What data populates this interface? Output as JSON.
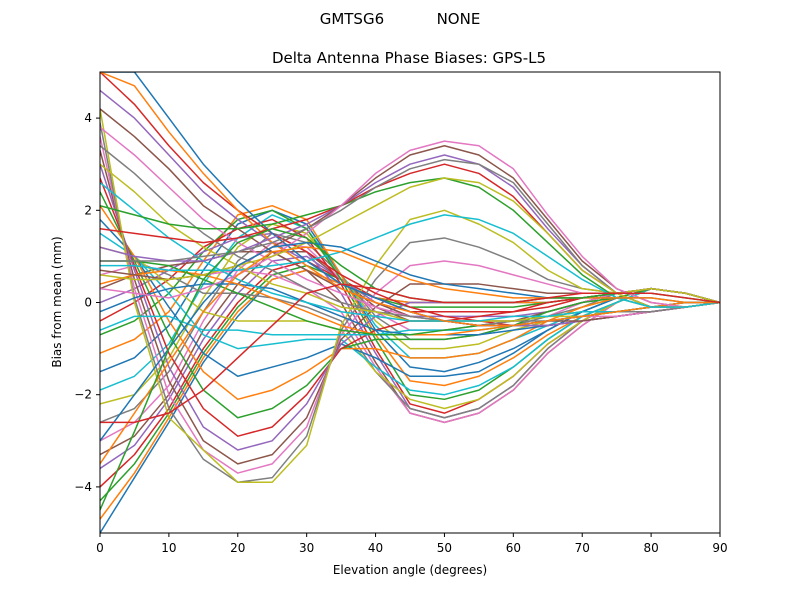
{
  "chart_data": {
    "type": "line",
    "suptitle": "GMTSG6           NONE",
    "title": "Delta Antenna Phase Biases: GPS-L5",
    "xlabel": "Elevation angle (degrees)",
    "ylabel": "Bias from mean (mm)",
    "xlim": [
      0,
      90
    ],
    "ylim": [
      -5,
      5
    ],
    "xticks": [
      "0",
      "10",
      "20",
      "30",
      "40",
      "50",
      "60",
      "70",
      "80",
      "90"
    ],
    "yticks": [
      "−4",
      "−2",
      "0",
      "2",
      "4"
    ],
    "x": [
      0,
      5,
      10,
      15,
      20,
      25,
      30,
      35,
      40,
      45,
      50,
      55,
      60,
      65,
      70,
      75,
      80,
      85,
      90
    ],
    "grid": false,
    "legend": "none",
    "series_colors": [
      "#1f77b4",
      "#ff7f0e",
      "#2ca02c",
      "#d62728",
      "#9467bd",
      "#8c564b",
      "#e377c2",
      "#7f7f7f",
      "#bcbd22",
      "#17becf"
    ],
    "series": [
      {
        "values": [
          -5.0,
          -3.8,
          -2.6,
          -1.3,
          -0.3,
          0.5,
          0.7,
          0.4,
          0.1,
          0.0,
          0.0,
          0.0,
          0.0,
          0.0,
          0.1,
          0.2,
          0.3,
          0.2,
          0.0
        ]
      },
      {
        "values": [
          -4.7,
          -3.7,
          -2.5,
          -1.2,
          -0.2,
          0.5,
          0.7,
          0.4,
          0.1,
          0.0,
          0.0,
          0.0,
          0.0,
          0.0,
          0.1,
          0.2,
          0.3,
          0.2,
          0.0
        ]
      },
      {
        "values": [
          -4.3,
          -3.5,
          -2.4,
          -1.1,
          -0.1,
          0.6,
          0.8,
          0.5,
          0.1,
          -0.1,
          -0.1,
          -0.1,
          -0.1,
          0.0,
          0.1,
          0.2,
          0.3,
          0.2,
          0.0
        ]
      },
      {
        "values": [
          -4.0,
          -3.3,
          -2.3,
          -1.0,
          0.0,
          0.7,
          0.9,
          0.5,
          0.1,
          -0.2,
          -0.2,
          -0.2,
          -0.2,
          -0.1,
          0.1,
          0.2,
          0.3,
          0.2,
          0.0
        ]
      },
      {
        "values": [
          -3.6,
          -3.1,
          -2.1,
          -0.8,
          0.2,
          0.9,
          1.0,
          0.5,
          0.0,
          -0.3,
          -0.3,
          -0.3,
          -0.3,
          -0.2,
          0.0,
          0.2,
          0.3,
          0.2,
          0.0
        ]
      },
      {
        "values": [
          -3.3,
          -2.9,
          -2.0,
          -0.6,
          0.4,
          1.1,
          1.1,
          0.5,
          -0.1,
          -0.4,
          -0.4,
          -0.4,
          -0.4,
          -0.2,
          0.0,
          0.2,
          0.3,
          0.2,
          0.0
        ]
      },
      {
        "values": [
          -3.0,
          -2.6,
          -1.8,
          -0.4,
          0.7,
          1.3,
          1.2,
          0.5,
          -0.2,
          -0.6,
          -0.6,
          -0.5,
          -0.4,
          -0.3,
          0.0,
          0.2,
          0.3,
          0.2,
          0.0
        ]
      },
      {
        "values": [
          -2.6,
          -2.3,
          -1.5,
          -0.2,
          0.9,
          1.5,
          1.3,
          0.6,
          -0.3,
          -0.8,
          -0.8,
          -0.7,
          -0.5,
          -0.3,
          -0.1,
          0.2,
          0.3,
          0.2,
          0.0
        ]
      },
      {
        "values": [
          -2.2,
          -2.0,
          -1.2,
          0.1,
          1.2,
          1.7,
          1.5,
          0.6,
          -0.4,
          -1.0,
          -1.0,
          -0.9,
          -0.6,
          -0.4,
          -0.1,
          0.1,
          0.3,
          0.2,
          0.0
        ]
      },
      {
        "values": [
          -1.9,
          -1.6,
          -0.9,
          0.4,
          1.4,
          1.9,
          1.6,
          0.6,
          -0.5,
          -1.2,
          -1.2,
          -1.1,
          -0.8,
          -0.5,
          -0.2,
          0.1,
          0.3,
          0.2,
          0.0
        ]
      },
      {
        "values": [
          -1.5,
          -1.2,
          -0.5,
          0.7,
          1.7,
          2.0,
          1.7,
          0.6,
          -0.6,
          -1.4,
          -1.5,
          -1.3,
          -1.0,
          -0.6,
          -0.2,
          0.1,
          0.3,
          0.2,
          0.0
        ]
      },
      {
        "values": [
          -1.1,
          -0.8,
          -0.2,
          0.9,
          1.9,
          2.1,
          1.8,
          0.6,
          -0.7,
          -1.7,
          -1.8,
          -1.6,
          -1.2,
          -0.7,
          -0.3,
          0.0,
          0.3,
          0.2,
          0.0
        ]
      },
      {
        "values": [
          -0.7,
          -0.4,
          0.2,
          1.1,
          1.8,
          2.0,
          1.6,
          0.5,
          -0.8,
          -2.0,
          -2.1,
          -1.9,
          -1.4,
          -0.8,
          -0.3,
          0.0,
          0.3,
          0.2,
          0.0
        ]
      },
      {
        "values": [
          -0.4,
          0.0,
          0.5,
          1.2,
          1.6,
          1.8,
          1.4,
          0.4,
          -1.0,
          -2.2,
          -2.4,
          -2.1,
          -1.6,
          -0.9,
          -0.4,
          0.0,
          0.3,
          0.2,
          0.0
        ]
      },
      {
        "values": [
          0.0,
          0.3,
          0.7,
          1.1,
          1.4,
          1.5,
          1.1,
          0.2,
          -1.1,
          -2.3,
          -2.5,
          -2.3,
          -1.8,
          -1.0,
          -0.4,
          0.0,
          0.3,
          0.2,
          0.0
        ]
      },
      {
        "values": [
          0.3,
          0.6,
          0.8,
          0.9,
          1.1,
          1.1,
          0.7,
          0.0,
          -1.3,
          -2.4,
          -2.6,
          -2.4,
          -1.9,
          -1.1,
          -0.5,
          0.0,
          0.3,
          0.2,
          0.0
        ]
      },
      {
        "values": [
          0.6,
          0.8,
          0.7,
          0.6,
          0.7,
          0.6,
          0.3,
          -0.2,
          -1.4,
          -2.4,
          -2.6,
          -2.4,
          -1.9,
          -1.1,
          -0.5,
          0.0,
          0.3,
          0.2,
          0.0
        ]
      },
      {
        "values": [
          0.9,
          0.9,
          0.6,
          0.2,
          0.2,
          0.1,
          -0.1,
          -0.4,
          -1.5,
          -2.3,
          -2.5,
          -2.3,
          -1.8,
          -1.0,
          -0.4,
          0.0,
          0.3,
          0.2,
          0.0
        ]
      },
      {
        "values": [
          1.2,
          1.0,
          0.4,
          -0.2,
          -0.4,
          -0.4,
          -0.4,
          -0.6,
          -1.5,
          -2.1,
          -2.3,
          -2.1,
          -1.6,
          -0.9,
          -0.4,
          0.0,
          0.3,
          0.2,
          0.0
        ]
      },
      {
        "values": [
          1.5,
          1.0,
          0.2,
          -0.7,
          -1.0,
          -0.9,
          -0.8,
          -0.8,
          -1.4,
          -1.9,
          -2.0,
          -1.8,
          -1.4,
          -0.8,
          -0.3,
          0.0,
          0.3,
          0.2,
          0.0
        ]
      },
      {
        "values": [
          1.8,
          1.0,
          -0.1,
          -1.1,
          -1.6,
          -1.4,
          -1.2,
          -0.9,
          -1.2,
          -1.6,
          -1.6,
          -1.5,
          -1.1,
          -0.6,
          -0.2,
          0.1,
          0.3,
          0.2,
          0.0
        ]
      },
      {
        "values": [
          2.1,
          1.0,
          -0.4,
          -1.5,
          -2.1,
          -1.9,
          -1.5,
          -1.0,
          -1.0,
          -1.2,
          -1.2,
          -1.1,
          -0.8,
          -0.4,
          -0.1,
          0.1,
          0.3,
          0.2,
          0.0
        ]
      },
      {
        "values": [
          2.4,
          0.9,
          -0.7,
          -1.9,
          -2.5,
          -2.3,
          -1.8,
          -1.0,
          -0.8,
          -0.8,
          -0.8,
          -0.7,
          -0.5,
          -0.2,
          0.0,
          0.1,
          0.3,
          0.2,
          0.0
        ]
      },
      {
        "values": [
          2.7,
          0.8,
          -1.1,
          -2.3,
          -2.9,
          -2.7,
          -2.0,
          -1.0,
          -0.6,
          -0.4,
          -0.4,
          -0.3,
          -0.2,
          0.0,
          0.1,
          0.2,
          0.3,
          0.2,
          0.0
        ]
      },
      {
        "values": [
          3.0,
          0.7,
          -1.4,
          -2.7,
          -3.2,
          -3.0,
          -2.2,
          -0.9,
          -0.3,
          0.0,
          0.0,
          0.0,
          0.0,
          0.1,
          0.1,
          0.2,
          0.3,
          0.2,
          0.0
        ]
      },
      {
        "values": [
          3.3,
          0.5,
          -1.7,
          -3.0,
          -3.5,
          -3.3,
          -2.5,
          -0.8,
          -0.1,
          0.4,
          0.4,
          0.4,
          0.3,
          0.2,
          0.2,
          0.2,
          0.3,
          0.2,
          0.0
        ]
      },
      {
        "values": [
          3.6,
          0.3,
          -2.0,
          -3.2,
          -3.7,
          -3.5,
          -2.7,
          -0.7,
          0.2,
          0.8,
          0.9,
          0.8,
          0.6,
          0.4,
          0.2,
          0.2,
          0.3,
          0.2,
          0.0
        ]
      },
      {
        "values": [
          3.9,
          0.1,
          -2.3,
          -3.4,
          -3.9,
          -3.8,
          -2.9,
          -0.6,
          0.5,
          1.3,
          1.4,
          1.2,
          0.9,
          0.5,
          0.3,
          0.2,
          0.3,
          0.2,
          0.0
        ]
      },
      {
        "values": [
          4.2,
          0.0,
          -2.5,
          -3.2,
          -3.9,
          -3.9,
          -3.1,
          -0.5,
          0.8,
          1.8,
          2.0,
          1.7,
          1.3,
          0.7,
          0.3,
          0.2,
          0.3,
          0.2,
          0.0
        ]
      },
      {
        "values": [
          -0.6,
          -0.3,
          -0.3,
          -0.6,
          -0.6,
          -0.7,
          -0.7,
          -0.7,
          -0.7,
          -0.6,
          -0.6,
          -0.6,
          -0.5,
          -0.5,
          -0.4,
          -0.3,
          -0.2,
          -0.1,
          0.0
        ]
      },
      {
        "values": [
          -0.2,
          0.1,
          0.3,
          0.4,
          0.4,
          0.3,
          0.0,
          -0.3,
          -0.6,
          -0.7,
          -0.7,
          -0.7,
          -0.6,
          -0.5,
          -0.4,
          -0.3,
          -0.2,
          -0.1,
          0.0
        ]
      },
      {
        "values": [
          0.4,
          0.6,
          0.7,
          0.6,
          0.4,
          0.1,
          -0.2,
          -0.5,
          -0.7,
          -0.7,
          -0.7,
          -0.6,
          -0.5,
          -0.4,
          -0.3,
          -0.2,
          -0.1,
          -0.1,
          0.0
        ]
      },
      {
        "values": [
          0.9,
          0.9,
          0.8,
          0.5,
          0.2,
          -0.1,
          -0.4,
          -0.6,
          -0.7,
          -0.7,
          -0.6,
          -0.5,
          -0.4,
          -0.3,
          -0.2,
          -0.2,
          -0.1,
          0.0,
          0.0
        ]
      },
      {
        "values": [
          5.0,
          4.3,
          3.4,
          2.6,
          2.0,
          1.5,
          1.1,
          0.6,
          0.2,
          -0.1,
          -0.3,
          -0.4,
          -0.5,
          -0.5,
          -0.4,
          -0.3,
          -0.2,
          -0.1,
          0.0
        ]
      },
      {
        "values": [
          4.6,
          4.0,
          3.2,
          2.4,
          1.8,
          1.3,
          0.9,
          0.4,
          0.1,
          -0.2,
          -0.4,
          -0.5,
          -0.5,
          -0.5,
          -0.4,
          -0.3,
          -0.2,
          -0.1,
          0.0
        ]
      },
      {
        "values": [
          4.2,
          3.6,
          2.9,
          2.1,
          1.6,
          1.1,
          0.7,
          0.3,
          0.0,
          -0.3,
          -0.4,
          -0.5,
          -0.5,
          -0.4,
          -0.4,
          -0.3,
          -0.2,
          -0.1,
          0.0
        ]
      },
      {
        "values": [
          3.8,
          3.2,
          2.5,
          1.8,
          1.3,
          0.9,
          0.5,
          0.2,
          -0.1,
          -0.3,
          -0.4,
          -0.5,
          -0.5,
          -0.4,
          -0.3,
          -0.3,
          -0.2,
          -0.1,
          0.0
        ]
      },
      {
        "values": [
          3.4,
          2.8,
          2.1,
          1.5,
          1.0,
          0.7,
          0.3,
          0.0,
          -0.2,
          -0.3,
          -0.4,
          -0.5,
          -0.4,
          -0.4,
          -0.3,
          -0.2,
          -0.2,
          -0.1,
          0.0
        ]
      },
      {
        "values": [
          3.0,
          2.4,
          1.7,
          1.2,
          0.8,
          0.4,
          0.2,
          -0.1,
          -0.2,
          -0.4,
          -0.4,
          -0.4,
          -0.4,
          -0.3,
          -0.3,
          -0.2,
          -0.1,
          -0.1,
          0.0
        ]
      },
      {
        "values": [
          2.6,
          2.0,
          1.4,
          0.9,
          0.5,
          0.2,
          0.0,
          -0.2,
          -0.3,
          -0.4,
          -0.4,
          -0.4,
          -0.3,
          -0.3,
          -0.2,
          -0.2,
          -0.1,
          0.0,
          0.0
        ]
      },
      {
        "values": [
          5.0,
          5.0,
          4.0,
          3.0,
          2.2,
          1.5,
          0.9,
          0.4,
          0.1,
          -0.2,
          -0.4,
          -0.5,
          -0.5,
          -0.4,
          -0.3,
          -0.2,
          -0.1,
          0.0,
          0.0
        ]
      },
      {
        "values": [
          5.0,
          4.7,
          3.7,
          2.8,
          2.0,
          1.3,
          0.8,
          0.3,
          0.0,
          -0.2,
          -0.4,
          -0.5,
          -0.5,
          -0.4,
          -0.3,
          -0.2,
          -0.1,
          0.0,
          0.0
        ]
      },
      {
        "values": [
          2.1,
          1.9,
          1.7,
          1.6,
          1.6,
          1.7,
          1.9,
          2.1,
          2.4,
          2.6,
          2.7,
          2.5,
          2.0,
          1.3,
          0.6,
          0.1,
          -0.1,
          -0.1,
          0.0
        ]
      },
      {
        "values": [
          1.6,
          1.5,
          1.4,
          1.3,
          1.4,
          1.6,
          1.8,
          2.1,
          2.5,
          2.8,
          3.0,
          2.8,
          2.3,
          1.5,
          0.7,
          0.2,
          -0.1,
          -0.1,
          0.0
        ]
      },
      {
        "values": [
          1.2,
          1.0,
          0.9,
          0.9,
          1.1,
          1.4,
          1.7,
          2.1,
          2.6,
          3.0,
          3.2,
          3.0,
          2.5,
          1.6,
          0.8,
          0.2,
          -0.1,
          -0.1,
          0.0
        ]
      },
      {
        "values": [
          0.7,
          0.6,
          0.5,
          0.6,
          0.8,
          1.2,
          1.6,
          2.1,
          2.7,
          3.2,
          3.4,
          3.2,
          2.7,
          1.8,
          0.9,
          0.3,
          0.0,
          -0.1,
          0.0
        ]
      },
      {
        "values": [
          0.3,
          0.2,
          0.1,
          0.3,
          0.6,
          1.0,
          1.5,
          2.1,
          2.8,
          3.3,
          3.5,
          3.4,
          2.9,
          1.9,
          1.0,
          0.3,
          0.0,
          -0.1,
          0.0
        ]
      },
      {
        "values": [
          0.9,
          0.9,
          0.9,
          1.0,
          1.1,
          1.3,
          1.6,
          2.0,
          2.5,
          2.9,
          3.1,
          3.0,
          2.6,
          1.7,
          0.8,
          0.2,
          -0.1,
          -0.1,
          0.0
        ]
      },
      {
        "values": [
          0.6,
          0.5,
          0.5,
          0.6,
          0.8,
          1.0,
          1.3,
          1.7,
          2.1,
          2.5,
          2.7,
          2.6,
          2.2,
          1.5,
          0.7,
          0.2,
          -0.1,
          -0.1,
          0.0
        ]
      },
      {
        "values": [
          0.8,
          0.8,
          0.7,
          0.7,
          0.7,
          0.8,
          0.9,
          1.1,
          1.4,
          1.7,
          1.9,
          1.8,
          1.5,
          1.0,
          0.5,
          0.1,
          -0.1,
          -0.1,
          0.0
        ]
      },
      {
        "values": [
          -3.0,
          -2.0,
          -1.0,
          0.0,
          0.8,
          1.2,
          1.3,
          1.2,
          0.9,
          0.6,
          0.4,
          0.3,
          0.2,
          0.1,
          0.1,
          0.1,
          0.1,
          0.0,
          0.0
        ]
      },
      {
        "values": [
          -3.5,
          -2.4,
          -1.3,
          -0.2,
          0.6,
          1.1,
          1.2,
          1.1,
          0.8,
          0.5,
          0.3,
          0.2,
          0.1,
          0.1,
          0.1,
          0.1,
          0.1,
          0.0,
          0.0
        ]
      },
      {
        "values": [
          -4.5,
          -2.8,
          -1.0,
          0.5,
          1.3,
          1.6,
          1.4,
          0.8,
          0.3,
          0.1,
          0.0,
          0.0,
          0.0,
          0.1,
          0.1,
          0.2,
          0.2,
          0.1,
          0.0
        ]
      },
      {
        "values": [
          -2.6,
          -2.6,
          -2.4,
          -1.9,
          -1.2,
          -0.5,
          0.2,
          0.4,
          0.3,
          0.1,
          0.0,
          0.0,
          0.0,
          0.1,
          0.2,
          0.2,
          0.2,
          0.1,
          0.0
        ]
      }
    ]
  }
}
